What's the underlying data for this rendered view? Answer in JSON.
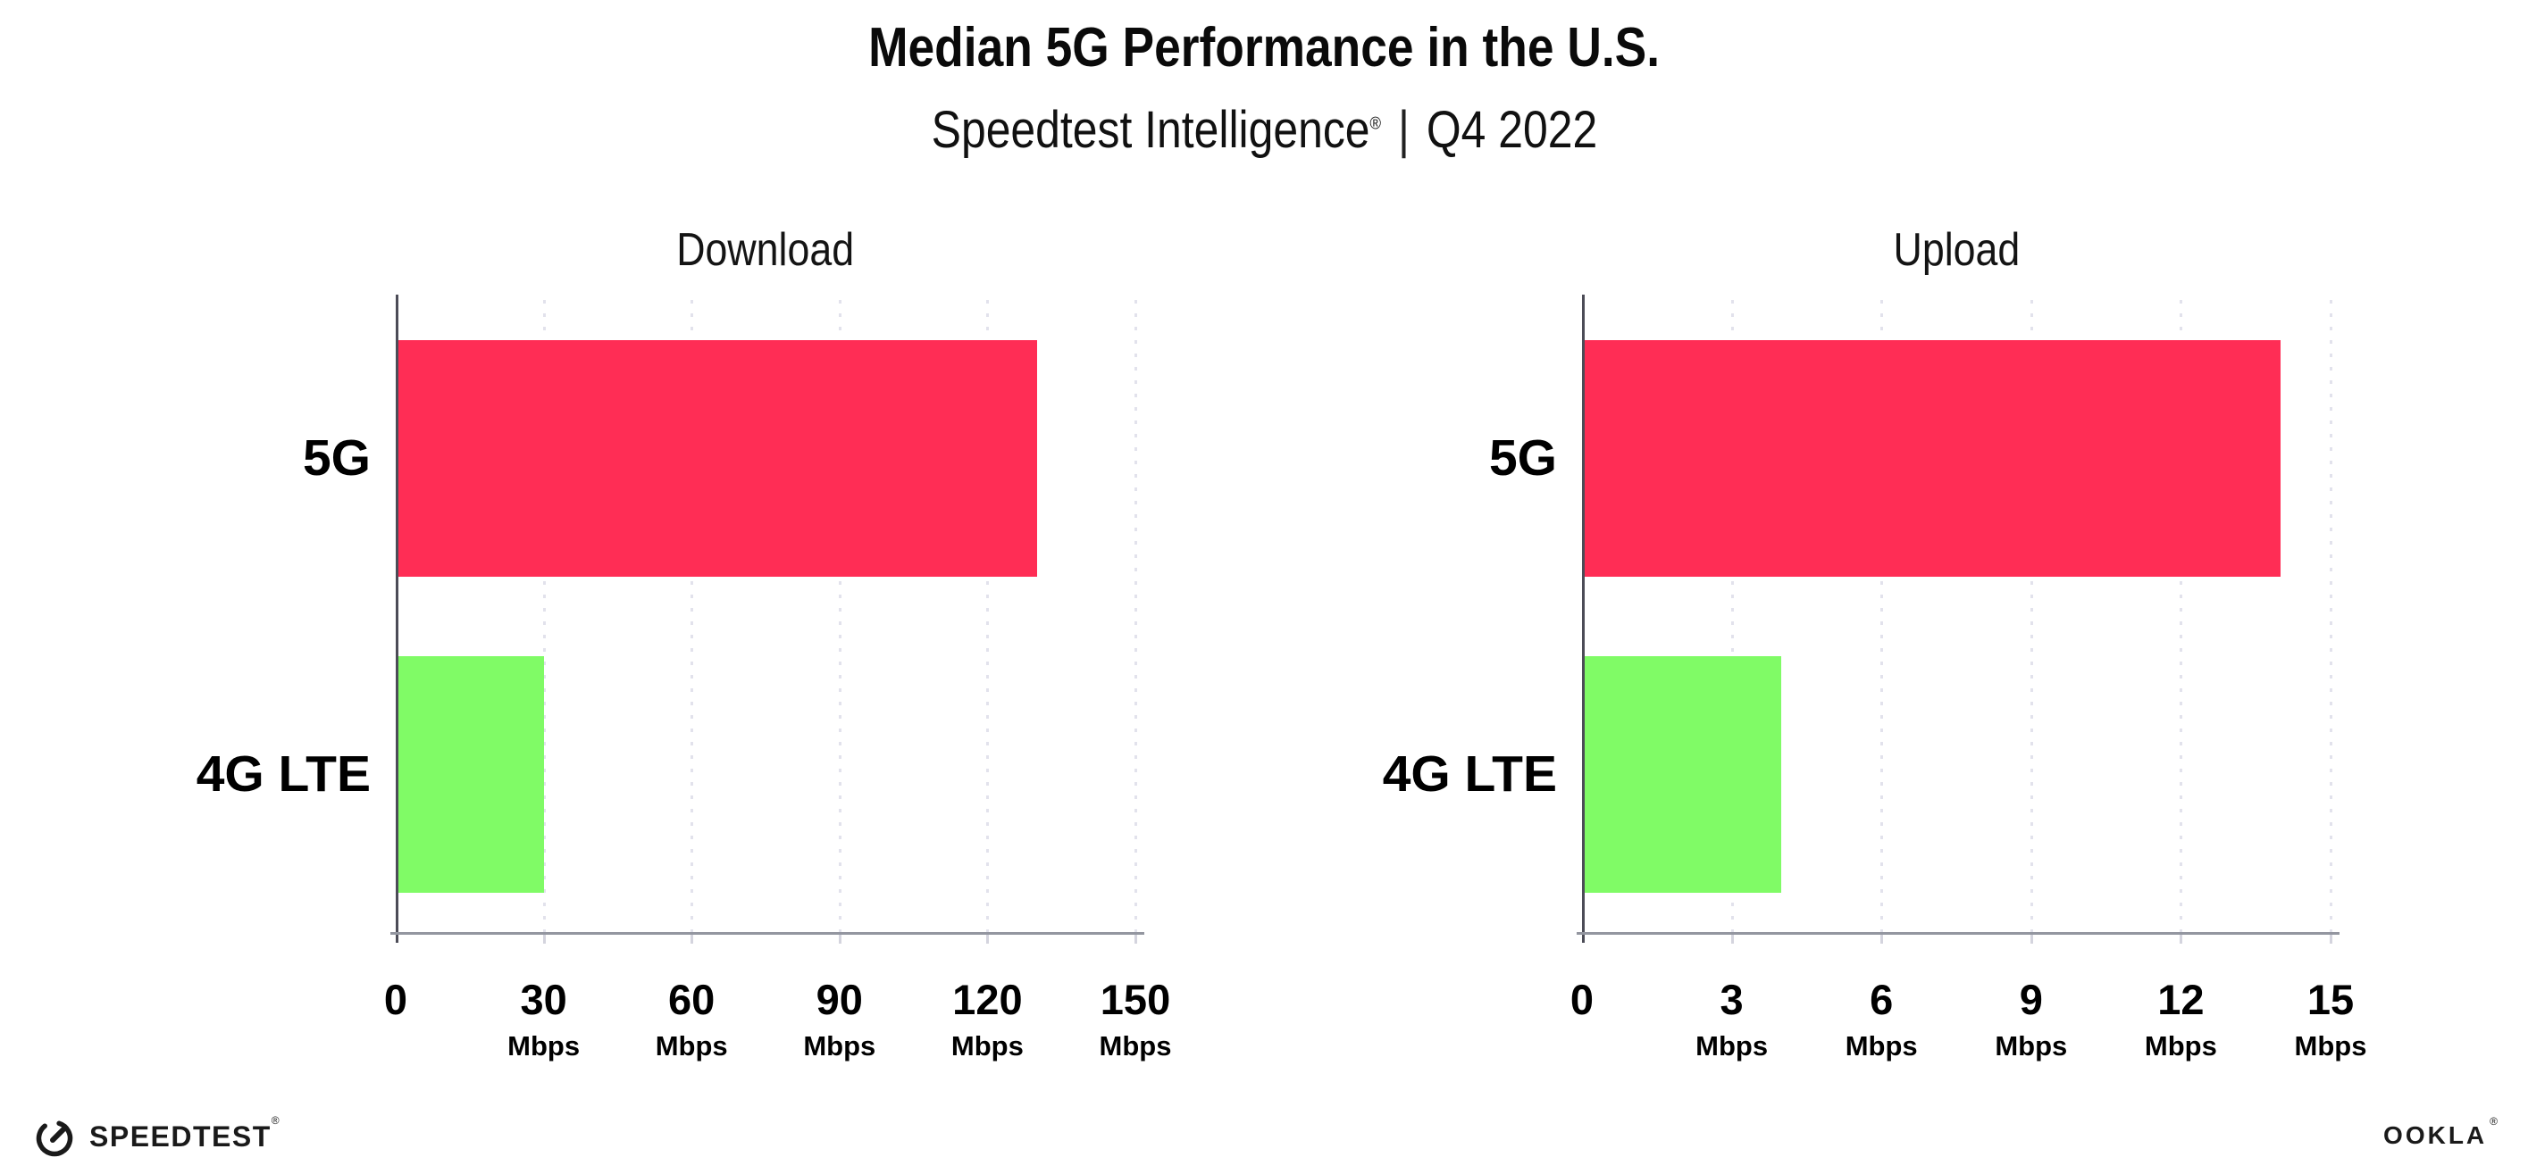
{
  "header": {
    "title": "Median 5G Performance in the U.S.",
    "subtitle_brand": "Speedtest Intelligence",
    "subtitle_reg": "®",
    "subtitle_separator": "|",
    "subtitle_period": "Q4 2022"
  },
  "chart_data": [
    {
      "type": "bar",
      "orientation": "horizontal",
      "title": "Download",
      "unit": "Mbps",
      "xlim": [
        0,
        150
      ],
      "xticks": [
        0,
        30,
        60,
        90,
        120,
        150
      ],
      "xtick_unit_label": "Mbps",
      "grid": "vertical-dotted",
      "legend": false,
      "bars": [
        {
          "category": "5G",
          "value": 130,
          "color": "#ff2d55"
        },
        {
          "category": "4G LTE",
          "value": 30,
          "color": "#80fb66"
        }
      ]
    },
    {
      "type": "bar",
      "orientation": "horizontal",
      "title": "Upload",
      "unit": "Mbps",
      "xlim": [
        0,
        15
      ],
      "xticks": [
        0,
        3,
        6,
        9,
        12,
        15
      ],
      "xtick_unit_label": "Mbps",
      "grid": "vertical-dotted",
      "legend": false,
      "bars": [
        {
          "category": "5G",
          "value": 14,
          "color": "#ff2d55"
        },
        {
          "category": "4G LTE",
          "value": 4,
          "color": "#80fb66"
        }
      ]
    }
  ],
  "footer": {
    "speedtest_logo_text": "SPEEDTEST",
    "speedtest_reg": "®",
    "ookla_logo_text": "OOKLA",
    "ookla_reg": "®"
  },
  "colors": {
    "bar_5g": "#ff2d55",
    "bar_4g_lte": "#80fb66",
    "gridline": "#e2e2ec",
    "y_axis": "#4c4c57",
    "x_axis": "#9396a0",
    "text": "#000000"
  }
}
